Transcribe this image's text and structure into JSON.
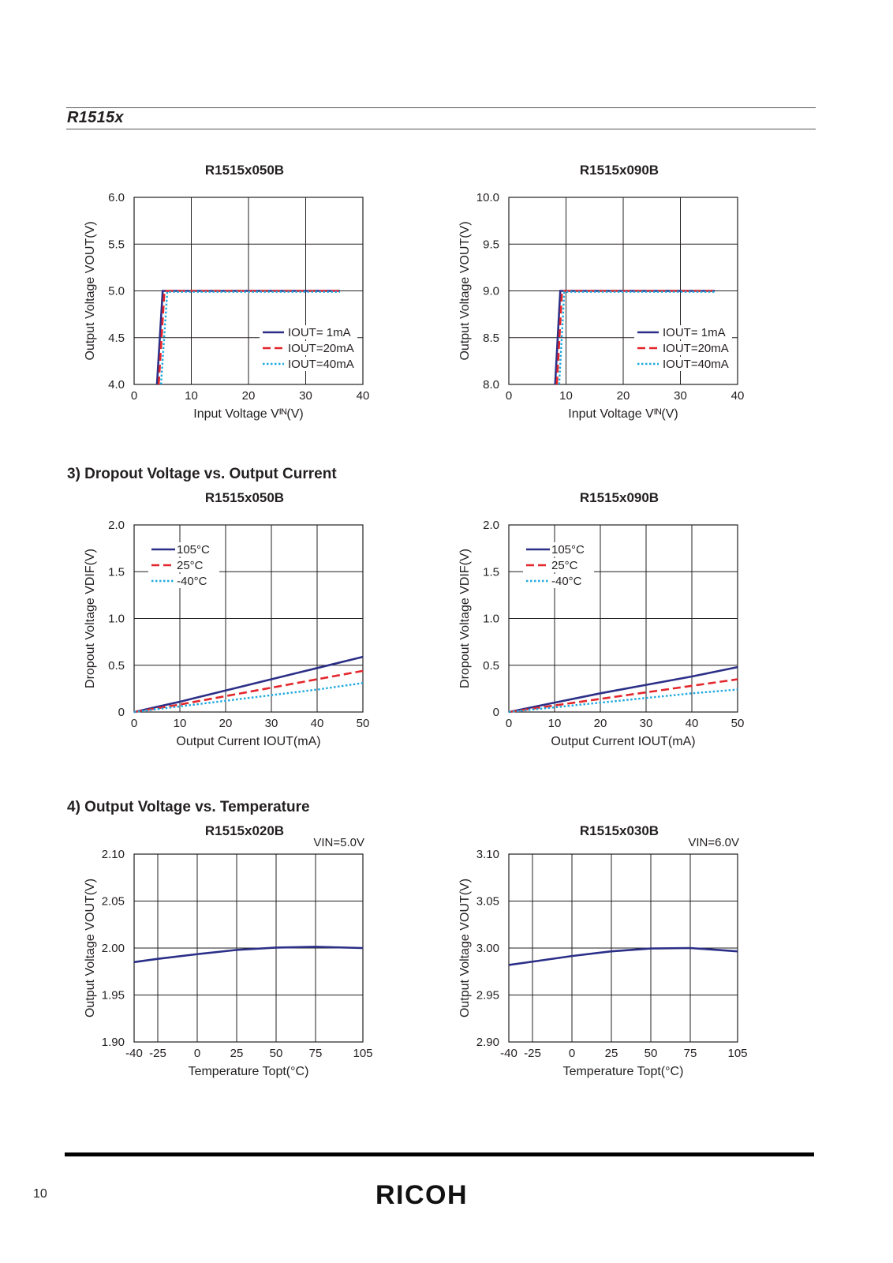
{
  "header": {
    "title": "R1515x"
  },
  "sections": {
    "dropout": "3) Dropout Voltage vs. Output Current",
    "temperature": "4) Output Voltage vs. Temperature"
  },
  "colors": {
    "navy": "#2b2f87",
    "red": "#e3262b",
    "cyan": "#1fa9df"
  },
  "chart_data": [
    {
      "id": "c1",
      "type": "line",
      "title": "R1515x050B",
      "note": "",
      "xlabel": "Input Voltage Vᴵᴺ(V)",
      "ylabel": "Output Voltage VOUT(V)",
      "xlim": [
        0,
        40
      ],
      "ylim": [
        4.0,
        6.0
      ],
      "xticks": [
        0,
        10,
        20,
        30,
        40
      ],
      "xtick_labels": [
        "0",
        "10",
        "20",
        "30",
        "40"
      ],
      "yticks": [
        4.0,
        4.5,
        5.0,
        5.5,
        6.0
      ],
      "ytick_labels": [
        "4.0",
        "4.5",
        "5.0",
        "5.5",
        "6.0"
      ],
      "xgrid": [
        10,
        20,
        30
      ],
      "ygrid": [
        4.5,
        5.0,
        5.5
      ],
      "legend": "bottom-right",
      "series": [
        {
          "name": "IOUT=  1mA",
          "style": "solid",
          "color": "#2b2f87",
          "x": [
            4.0,
            5.0,
            36
          ],
          "y": [
            4.0,
            5.0,
            5.0
          ]
        },
        {
          "name": "IOUT=20mA",
          "style": "dash",
          "color": "#e3262b",
          "x": [
            4.3,
            5.3,
            36
          ],
          "y": [
            4.0,
            5.0,
            5.0
          ]
        },
        {
          "name": "IOUT=40mA",
          "style": "dot",
          "color": "#1fa9df",
          "x": [
            4.7,
            5.8,
            36
          ],
          "y": [
            4.0,
            4.99,
            4.99
          ]
        }
      ]
    },
    {
      "id": "c2",
      "type": "line",
      "title": "R1515x090B",
      "note": "",
      "xlabel": "Input Voltage Vᴵᴺ(V)",
      "ylabel": "Output Voltage VOUT(V)",
      "xlim": [
        0,
        40
      ],
      "ylim": [
        8.0,
        10.0
      ],
      "xticks": [
        0,
        10,
        20,
        30,
        40
      ],
      "xtick_labels": [
        "0",
        "10",
        "20",
        "30",
        "40"
      ],
      "yticks": [
        8.0,
        8.5,
        9.0,
        9.5,
        10.0
      ],
      "ytick_labels": [
        "8.0",
        "8.5",
        "9.0",
        "9.5",
        "10.0"
      ],
      "xgrid": [
        10,
        20,
        30
      ],
      "ygrid": [
        8.5,
        9.0,
        9.5
      ],
      "legend": "bottom-right",
      "series": [
        {
          "name": "IOUT=  1mA",
          "style": "solid",
          "color": "#2b2f87",
          "x": [
            8.1,
            9.0,
            36
          ],
          "y": [
            8.0,
            9.0,
            9.0
          ]
        },
        {
          "name": "IOUT=20mA",
          "style": "dash",
          "color": "#e3262b",
          "x": [
            8.4,
            9.3,
            36
          ],
          "y": [
            8.0,
            9.0,
            9.0
          ]
        },
        {
          "name": "IOUT=40mA",
          "style": "dot",
          "color": "#1fa9df",
          "x": [
            8.8,
            9.7,
            36
          ],
          "y": [
            8.0,
            8.99,
            8.99
          ]
        }
      ]
    },
    {
      "id": "c3",
      "type": "line",
      "title": "R1515x050B",
      "note": "",
      "xlabel": "Output Current IOUT(mA)",
      "ylabel": "Dropout Voltage VDIF(V)",
      "xlim": [
        0,
        50
      ],
      "ylim": [
        0,
        2.0
      ],
      "xticks": [
        0,
        10,
        20,
        30,
        40,
        50
      ],
      "xtick_labels": [
        "0",
        "10",
        "20",
        "30",
        "40",
        "50"
      ],
      "yticks": [
        0,
        0.5,
        1.0,
        1.5,
        2.0
      ],
      "ytick_labels": [
        "0",
        "0.5",
        "1.0",
        "1.5",
        "2.0"
      ],
      "xgrid": [
        10,
        20,
        30,
        40
      ],
      "ygrid": [
        0.5,
        1.0,
        1.5
      ],
      "legend": "top-left",
      "series": [
        {
          "name": "105°C",
          "style": "solid",
          "color": "#2b2f87",
          "x": [
            0,
            10,
            20,
            30,
            40,
            50
          ],
          "y": [
            0,
            0.11,
            0.23,
            0.35,
            0.47,
            0.59
          ]
        },
        {
          "name": "25°C",
          "style": "dash",
          "color": "#e3262b",
          "x": [
            0,
            10,
            20,
            30,
            40,
            50
          ],
          "y": [
            0,
            0.08,
            0.17,
            0.26,
            0.35,
            0.44
          ]
        },
        {
          "name": "-40°C",
          "style": "dot",
          "color": "#1fa9df",
          "x": [
            0,
            10,
            20,
            30,
            40,
            50
          ],
          "y": [
            0,
            0.06,
            0.12,
            0.18,
            0.24,
            0.31
          ]
        }
      ]
    },
    {
      "id": "c4",
      "type": "line",
      "title": "R1515x090B",
      "note": "",
      "xlabel": "Output Current IOUT(mA)",
      "ylabel": "Dropout Voltage VDIF(V)",
      "xlim": [
        0,
        50
      ],
      "ylim": [
        0,
        2.0
      ],
      "xticks": [
        0,
        10,
        20,
        30,
        40,
        50
      ],
      "xtick_labels": [
        "0",
        "10",
        "20",
        "30",
        "40",
        "50"
      ],
      "yticks": [
        0,
        0.5,
        1.0,
        1.5,
        2.0
      ],
      "ytick_labels": [
        "0",
        "0.5",
        "1.0",
        "1.5",
        "2.0"
      ],
      "xgrid": [
        10,
        20,
        30,
        40
      ],
      "ygrid": [
        0.5,
        1.0,
        1.5
      ],
      "legend": "top-left",
      "series": [
        {
          "name": "105°C",
          "style": "solid",
          "color": "#2b2f87",
          "x": [
            0,
            10,
            20,
            30,
            40,
            50
          ],
          "y": [
            0,
            0.1,
            0.2,
            0.29,
            0.38,
            0.48
          ]
        },
        {
          "name": "25°C",
          "style": "dash",
          "color": "#e3262b",
          "x": [
            0,
            10,
            20,
            30,
            40,
            50
          ],
          "y": [
            0,
            0.07,
            0.14,
            0.21,
            0.28,
            0.35
          ]
        },
        {
          "name": "-40°C",
          "style": "dot",
          "color": "#1fa9df",
          "x": [
            0,
            10,
            20,
            30,
            40,
            50
          ],
          "y": [
            0,
            0.05,
            0.1,
            0.15,
            0.2,
            0.24
          ]
        }
      ]
    },
    {
      "id": "c5",
      "type": "line",
      "title": "R1515x020B",
      "note": "VIN=5.0V",
      "xlabel": "Temperature Topt(°C)",
      "ylabel": "Output Voltage VOUT(V)",
      "xlim": [
        -40,
        105
      ],
      "ylim": [
        1.9,
        2.1
      ],
      "xticks": [
        -40,
        -25,
        0,
        25,
        50,
        75,
        105
      ],
      "xtick_labels": [
        "-40",
        "-25",
        "0",
        "25",
        "50",
        "75",
        "105"
      ],
      "yticks": [
        1.9,
        1.95,
        2.0,
        2.05,
        2.1
      ],
      "ytick_labels": [
        "1.90",
        "1.95",
        "2.00",
        "2.05",
        "2.10"
      ],
      "xgrid": [
        -25,
        0,
        25,
        50,
        75
      ],
      "ygrid": [
        1.95,
        2.0,
        2.05
      ],
      "legend": "none",
      "series": [
        {
          "name": "",
          "style": "solid",
          "color": "#2b2f87",
          "x": [
            -40,
            -25,
            0,
            25,
            50,
            75,
            105
          ],
          "y": [
            1.985,
            1.9885,
            1.9935,
            1.998,
            2.0005,
            2.0013,
            2.0
          ]
        }
      ]
    },
    {
      "id": "c6",
      "type": "line",
      "title": "R1515x030B",
      "note": "VIN=6.0V",
      "xlabel": "Temperature Topt(°C)",
      "ylabel": "Output Voltage VOUT(V)",
      "xlim": [
        -40,
        105
      ],
      "ylim": [
        2.9,
        3.1
      ],
      "xticks": [
        -40,
        -25,
        0,
        25,
        50,
        75,
        105
      ],
      "xtick_labels": [
        "-40",
        "-25",
        "0",
        "25",
        "50",
        "75",
        "105"
      ],
      "yticks": [
        2.9,
        2.95,
        3.0,
        3.05,
        3.1
      ],
      "ytick_labels": [
        "2.90",
        "2.95",
        "3.00",
        "3.05",
        "3.10"
      ],
      "xgrid": [
        -25,
        0,
        25,
        50,
        75
      ],
      "ygrid": [
        2.95,
        3.0,
        3.05
      ],
      "legend": "none",
      "series": [
        {
          "name": "",
          "style": "solid",
          "color": "#2b2f87",
          "x": [
            -40,
            -25,
            0,
            25,
            50,
            75,
            105
          ],
          "y": [
            2.982,
            2.9855,
            2.9915,
            2.9965,
            2.9995,
            3.0,
            2.9965
          ]
        }
      ]
    }
  ],
  "footer": {
    "page_number": "10",
    "logo": "RICOH"
  }
}
